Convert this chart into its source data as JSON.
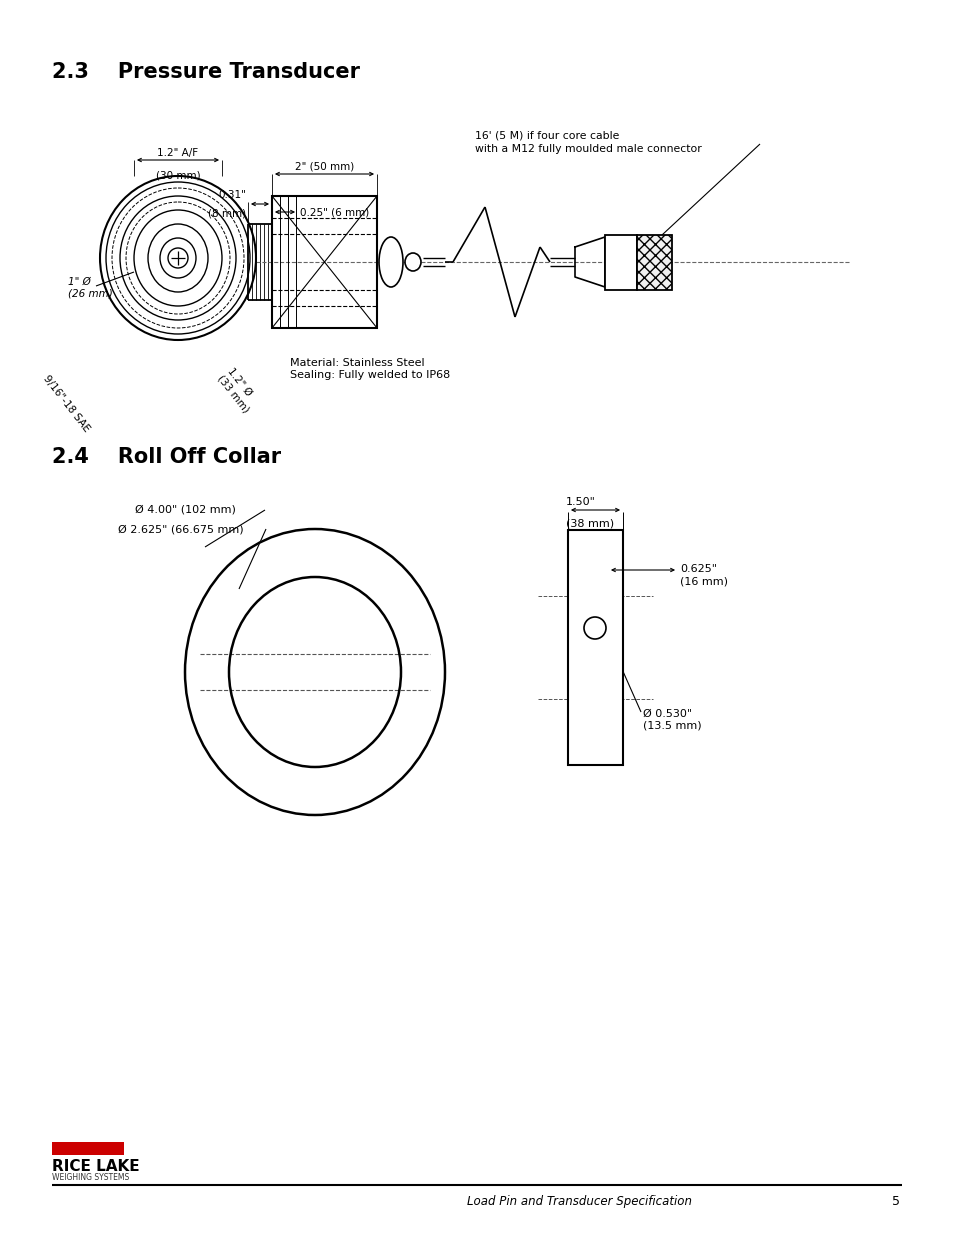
{
  "title_23": "2.3    Pressure Transducer",
  "title_24": "2.4    Roll Off Collar",
  "material_note": "Material: Stainless Steel\nSealing: Fully welded to IP68",
  "cable_note_line1": "16' (5 M) if four core cable",
  "cable_note_line2": "with a M12 fully moulded male connector",
  "footer_text": "Load Pin and Transducer Specification",
  "page_num": "5",
  "od1_label": "Ø 4.00\" (102 mm)",
  "od2_label": "Ø 2.625\" (66.675 mm)",
  "height_label": "1.50\"\n(38 mm)",
  "width_label": "0.625\"\n(16 mm)",
  "hole_label": "Ø 0.530\"\n(13.5 mm)",
  "bg_color": "#ffffff",
  "line_color": "#000000",
  "red_color": "#cc0000"
}
